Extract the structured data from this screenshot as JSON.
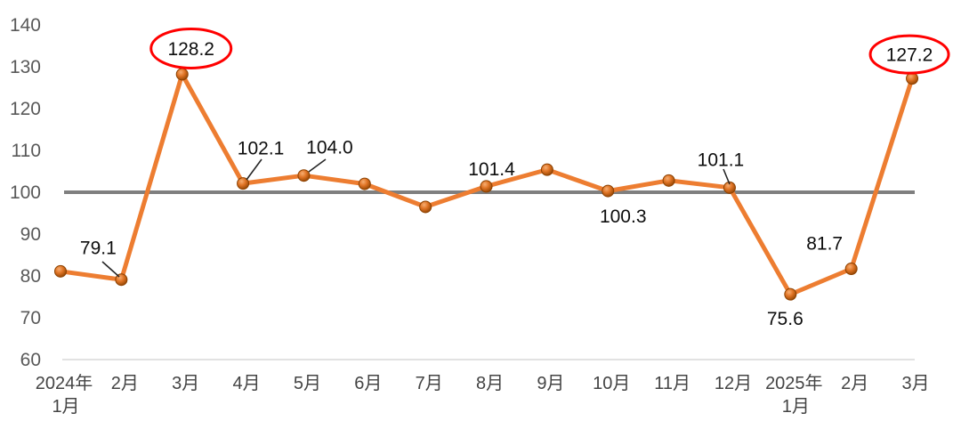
{
  "chart_data": {
    "type": "line",
    "title": "",
    "categories": [
      "2024年\n1月",
      "2月",
      "3月",
      "4月",
      "5月",
      "6月",
      "7月",
      "8月",
      "9月",
      "10月",
      "11月",
      "12月",
      "2025年\n1月",
      "2月",
      "3月"
    ],
    "values": [
      81.1,
      79.1,
      128.2,
      102.1,
      104.0,
      102.0,
      96.5,
      101.4,
      105.4,
      100.3,
      102.8,
      101.1,
      75.6,
      81.7,
      127.2
    ],
    "data_labels": [
      null,
      "79.1",
      "128.2",
      "102.1",
      "104.0",
      null,
      null,
      "101.4",
      null,
      "100.3",
      null,
      "101.1",
      "75.6",
      "81.7",
      "127.2"
    ],
    "highlighted_indices": [
      2,
      14
    ],
    "yticks": [
      140,
      130,
      120,
      110,
      100,
      90,
      80,
      70,
      60
    ],
    "ylim": [
      60,
      140
    ],
    "reference_line": {
      "value": 100,
      "color": "#7F7F7F"
    },
    "grid": false,
    "legend": false,
    "xlabel": "",
    "ylabel": "",
    "colors": {
      "series": "#ED7D31",
      "marker_dark": "#8C4100",
      "marker_light": "#F6AE73",
      "highlight_circle": "#FF0000",
      "axis_text": "#595959",
      "x_axis_line": "#D9D9D9",
      "leader_line": "#262626",
      "data_label_text": "#0d0d0d"
    }
  }
}
